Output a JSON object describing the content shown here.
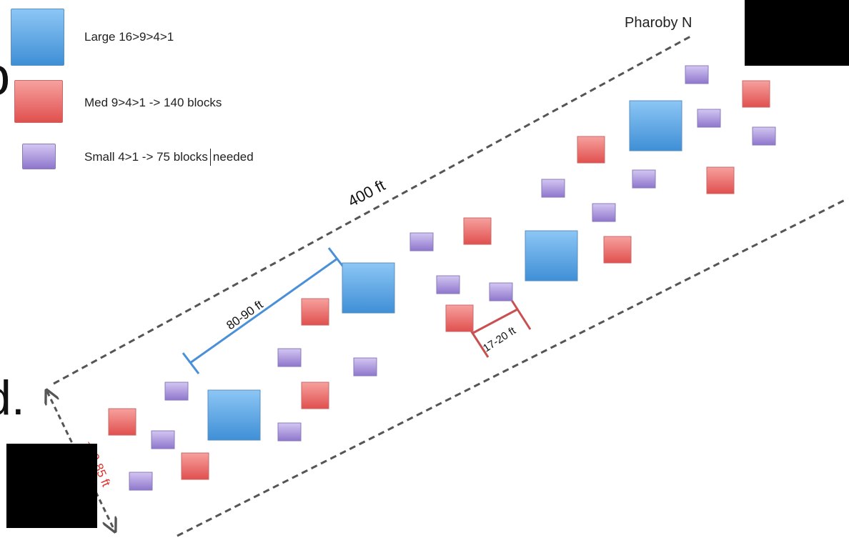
{
  "title": "Pharoby N",
  "legend": [
    {
      "label": "Large 16>9>4>1",
      "shape": "large-block",
      "color": "#5aa5e6"
    },
    {
      "label": "Med 9>4>1 -> 140 blocks",
      "shape": "medium-block",
      "color": "#ee6b6b"
    },
    {
      "label_part1": "Small 4>1 -> 75 blocks",
      "label_part2": "needed",
      "shape": "small-block",
      "color": "#a58fd6"
    }
  ],
  "dimensions": {
    "length": "400 ft",
    "width": "~70-85 ft",
    "large_spacing": "80-90 ft",
    "block_spacing": "17-20 ft"
  },
  "edge_glyphs": {
    "top_left": "o",
    "mid_left": "d."
  },
  "colors": {
    "large": "#5aa5e6",
    "medium": "#ee6b6b",
    "small": "#a58fd6",
    "blue_measure": "#4a90d9",
    "red_measure": "#c85050",
    "dash": "#555555",
    "width_label": "#e0302a"
  }
}
